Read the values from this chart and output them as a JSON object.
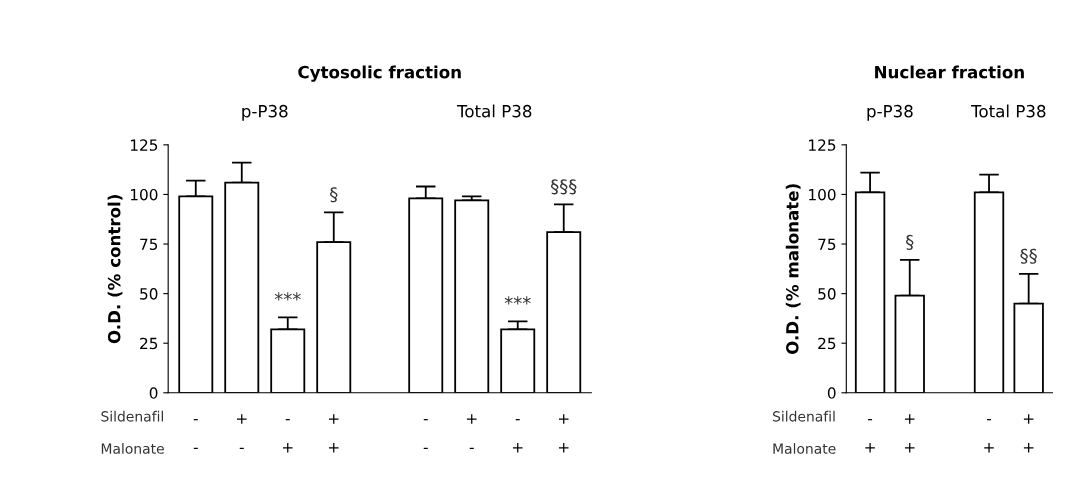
{
  "chart_data": [
    {
      "type": "bar",
      "title": "Cytosolic fraction",
      "ylabel": "O.D. (% control)",
      "categories": [
        "-\n-",
        "+\n-",
        "-\n+",
        "+\n+",
        null,
        "-\n-",
        "+\n-",
        "-\n+",
        "+\n+"
      ],
      "values": [
        99,
        106,
        32,
        76,
        null,
        98,
        97,
        32,
        81
      ],
      "errors": [
        [
          99,
          107
        ],
        [
          106,
          116
        ],
        [
          32,
          38
        ],
        [
          76,
          91
        ],
        null,
        [
          98,
          104
        ],
        [
          97,
          99
        ],
        [
          32,
          36
        ],
        [
          81,
          95
        ]
      ],
      "value_labels": [
        null,
        null,
        "***",
        "§",
        null,
        null,
        null,
        "***",
        "§§§"
      ],
      "color": "#ffffff",
      "ylim": [
        0,
        125
      ],
      "yticks": [
        0,
        25,
        50,
        75,
        100,
        125
      ],
      "grid": false,
      "annotations": [
        "p-P38",
        "Total P38",
        "Sildenafil",
        "Malonate"
      ]
    },
    {
      "type": "bar",
      "title": "Nuclear fraction",
      "ylabel": "O.D. (% malonate)",
      "categories": [
        "-\n+",
        "+\n+",
        null,
        "-\n+",
        "+\n+"
      ],
      "values": [
        101,
        49,
        null,
        101,
        45
      ],
      "errors": [
        [
          101,
          111
        ],
        [
          49,
          67
        ],
        null,
        [
          101,
          110
        ],
        [
          45,
          60
        ]
      ],
      "value_labels": [
        null,
        "§",
        null,
        null,
        "§§"
      ],
      "color": "#ffffff",
      "ylim": [
        0,
        125
      ],
      "yticks": [
        0,
        25,
        50,
        75,
        100,
        125
      ],
      "grid": false,
      "annotations": [
        "p-P38",
        "Total P38",
        "Sildenafil",
        "Malonate"
      ]
    }
  ]
}
